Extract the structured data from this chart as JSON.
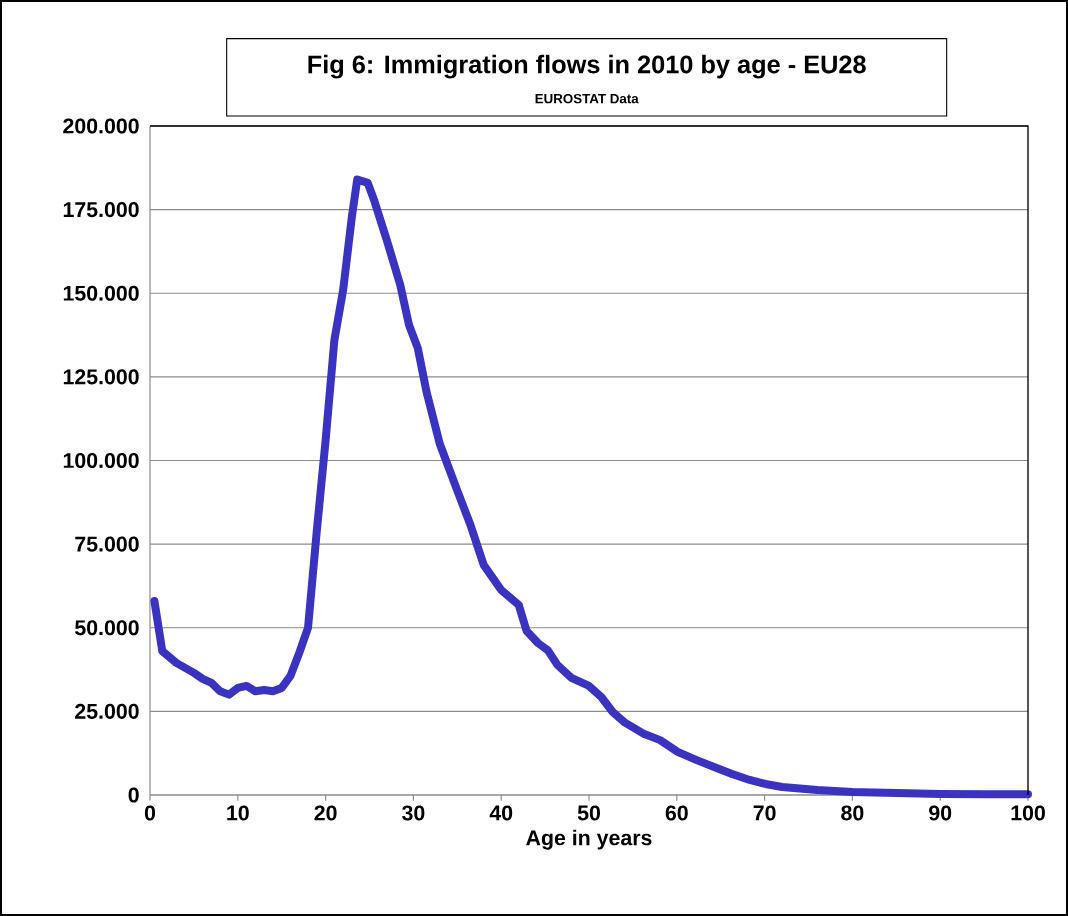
{
  "chart_data": {
    "type": "line",
    "title": "Fig 6: Immigration flows in 2010 by age - EU28",
    "subtitle": "EUROSTAT Data",
    "xlabel": "Age in years",
    "xlim": [
      0,
      100
    ],
    "xticks": [
      0,
      10,
      20,
      30,
      40,
      50,
      60,
      70,
      80,
      90,
      100
    ],
    "ylim": [
      0,
      200000
    ],
    "yticks": [
      {
        "value": 0,
        "label": "0"
      },
      {
        "value": 25000,
        "label": "25.000"
      },
      {
        "value": 50000,
        "label": "50.000"
      },
      {
        "value": 75000,
        "label": "75.000"
      },
      {
        "value": 100000,
        "label": "100.000"
      },
      {
        "value": 125000,
        "label": "125.000"
      },
      {
        "value": 150000,
        "label": "150.000"
      },
      {
        "value": 175000,
        "label": "175.000"
      },
      {
        "value": 200000,
        "label": "200.000"
      }
    ],
    "grid": "y",
    "marker": "none",
    "line_style": "solid",
    "series": [
      {
        "color": "#3a33bf",
        "x": [
          0.5,
          1.4,
          3,
          5,
          6,
          7,
          8,
          9,
          10,
          11,
          12,
          13,
          14,
          15,
          16,
          17,
          18,
          19,
          20,
          21,
          22,
          23,
          23.6,
          24.8,
          25.5,
          27,
          28.5,
          29.5,
          30.5,
          31.5,
          33,
          35,
          36.5,
          38,
          40,
          42,
          42.9,
          44.2,
          45.3,
          46.4,
          48,
          50,
          51.4,
          52.7,
          54,
          56.3,
          58.1,
          60.1,
          62.2,
          64.6,
          66.3,
          68.3,
          70.1,
          72,
          76,
          80,
          85,
          90,
          95,
          100
        ],
        "values": [
          58000,
          43000,
          39500,
          36500,
          34700,
          33500,
          31000,
          30000,
          32000,
          32600,
          31000,
          31400,
          31000,
          32000,
          35600,
          42500,
          50000,
          79000,
          106000,
          136000,
          151000,
          173000,
          184000,
          183000,
          178000,
          165600,
          152500,
          140500,
          133600,
          120500,
          105000,
          91000,
          80700,
          68800,
          61300,
          56800,
          49000,
          45400,
          43300,
          38900,
          35000,
          32600,
          29300,
          24800,
          21800,
          18200,
          16400,
          12900,
          10500,
          8000,
          6300,
          4500,
          3300,
          2400,
          1500,
          900,
          600,
          300,
          200,
          200
        ]
      }
    ]
  }
}
